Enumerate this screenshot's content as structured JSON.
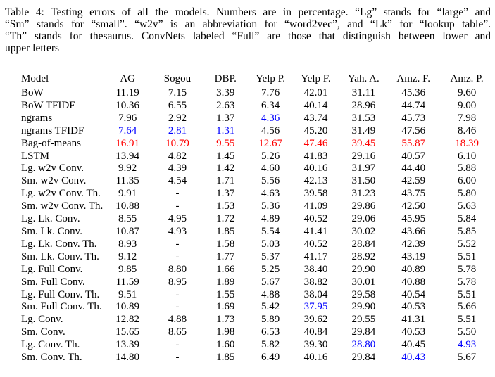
{
  "caption": {
    "lines": [
      "Table 4: Testing errors of all the models. Numbers are in percentage. “Lg” stands for “large” and",
      "“Sm” stands for “small”. “w2v” is an abbreviation for “word2vec”, and “Lk” for “lookup table”.",
      "“Th” stands for thesaurus. ConvNets labeled “Full” are those that distinguish between lower and",
      "upper letters"
    ]
  },
  "colors": {
    "text": "#000000",
    "background": "#ffffff",
    "highlight_best": "#0000ff",
    "highlight_worst": "#ff0000"
  },
  "table": {
    "headers": [
      "Model",
      "AG",
      "Sogou",
      "DBP.",
      "Yelp P.",
      "Yelp F.",
      "Yah. A.",
      "Amz. F.",
      "Amz. P."
    ],
    "rows": [
      {
        "model": "BoW",
        "values": [
          "11.19",
          "7.15",
          "3.39",
          "7.76",
          "42.01",
          "31.11",
          "45.36",
          "9.60"
        ],
        "colors": [
          "",
          "",
          "",
          "",
          "",
          "",
          "",
          ""
        ]
      },
      {
        "model": "BoW TFIDF",
        "values": [
          "10.36",
          "6.55",
          "2.63",
          "6.34",
          "40.14",
          "28.96",
          "44.74",
          "9.00"
        ],
        "colors": [
          "",
          "",
          "",
          "",
          "",
          "",
          "",
          ""
        ]
      },
      {
        "model": "ngrams",
        "values": [
          "7.96",
          "2.92",
          "1.37",
          "4.36",
          "43.74",
          "31.53",
          "45.73",
          "7.98"
        ],
        "colors": [
          "",
          "",
          "",
          "blue",
          "",
          "",
          "",
          ""
        ]
      },
      {
        "model": "ngrams TFIDF",
        "values": [
          "7.64",
          "2.81",
          "1.31",
          "4.56",
          "45.20",
          "31.49",
          "47.56",
          "8.46"
        ],
        "colors": [
          "blue",
          "blue",
          "blue",
          "",
          "",
          "",
          "",
          ""
        ]
      },
      {
        "model": "Bag-of-means",
        "values": [
          "16.91",
          "10.79",
          "9.55",
          "12.67",
          "47.46",
          "39.45",
          "55.87",
          "18.39"
        ],
        "colors": [
          "red",
          "red",
          "red",
          "red",
          "red",
          "red",
          "red",
          "red"
        ]
      },
      {
        "model": "LSTM",
        "values": [
          "13.94",
          "4.82",
          "1.45",
          "5.26",
          "41.83",
          "29.16",
          "40.57",
          "6.10"
        ],
        "colors": [
          "",
          "",
          "",
          "",
          "",
          "",
          "",
          ""
        ]
      },
      {
        "model": "Lg. w2v Conv.",
        "values": [
          "9.92",
          "4.39",
          "1.42",
          "4.60",
          "40.16",
          "31.97",
          "44.40",
          "5.88"
        ],
        "colors": [
          "",
          "",
          "",
          "",
          "",
          "",
          "",
          ""
        ]
      },
      {
        "model": "Sm. w2v Conv.",
        "values": [
          "11.35",
          "4.54",
          "1.71",
          "5.56",
          "42.13",
          "31.50",
          "42.59",
          "6.00"
        ],
        "colors": [
          "",
          "",
          "",
          "",
          "",
          "",
          "",
          ""
        ]
      },
      {
        "model": "Lg. w2v Conv. Th.",
        "values": [
          "9.91",
          "-",
          "1.37",
          "4.63",
          "39.58",
          "31.23",
          "43.75",
          "5.80"
        ],
        "colors": [
          "",
          "",
          "",
          "",
          "",
          "",
          "",
          ""
        ]
      },
      {
        "model": "Sm. w2v Conv. Th.",
        "values": [
          "10.88",
          "-",
          "1.53",
          "5.36",
          "41.09",
          "29.86",
          "42.50",
          "5.63"
        ],
        "colors": [
          "",
          "",
          "",
          "",
          "",
          "",
          "",
          ""
        ]
      },
      {
        "model": "Lg. Lk. Conv.",
        "values": [
          "8.55",
          "4.95",
          "1.72",
          "4.89",
          "40.52",
          "29.06",
          "45.95",
          "5.84"
        ],
        "colors": [
          "",
          "",
          "",
          "",
          "",
          "",
          "",
          ""
        ]
      },
      {
        "model": "Sm. Lk. Conv.",
        "values": [
          "10.87",
          "4.93",
          "1.85",
          "5.54",
          "41.41",
          "30.02",
          "43.66",
          "5.85"
        ],
        "colors": [
          "",
          "",
          "",
          "",
          "",
          "",
          "",
          ""
        ]
      },
      {
        "model": "Lg. Lk. Conv. Th.",
        "values": [
          "8.93",
          "-",
          "1.58",
          "5.03",
          "40.52",
          "28.84",
          "42.39",
          "5.52"
        ],
        "colors": [
          "",
          "",
          "",
          "",
          "",
          "",
          "",
          ""
        ]
      },
      {
        "model": "Sm. Lk. Conv. Th.",
        "values": [
          "9.12",
          "-",
          "1.77",
          "5.37",
          "41.17",
          "28.92",
          "43.19",
          "5.51"
        ],
        "colors": [
          "",
          "",
          "",
          "",
          "",
          "",
          "",
          ""
        ]
      },
      {
        "model": "Lg. Full Conv.",
        "values": [
          "9.85",
          "8.80",
          "1.66",
          "5.25",
          "38.40",
          "29.90",
          "40.89",
          "5.78"
        ],
        "colors": [
          "",
          "",
          "",
          "",
          "",
          "",
          "",
          ""
        ]
      },
      {
        "model": "Sm. Full Conv.",
        "values": [
          "11.59",
          "8.95",
          "1.89",
          "5.67",
          "38.82",
          "30.01",
          "40.88",
          "5.78"
        ],
        "colors": [
          "",
          "",
          "",
          "",
          "",
          "",
          "",
          ""
        ]
      },
      {
        "model": "Lg. Full Conv. Th.",
        "values": [
          "9.51",
          "-",
          "1.55",
          "4.88",
          "38.04",
          "29.58",
          "40.54",
          "5.51"
        ],
        "colors": [
          "",
          "",
          "",
          "",
          "",
          "",
          "",
          ""
        ]
      },
      {
        "model": "Sm. Full Conv. Th.",
        "values": [
          "10.89",
          "-",
          "1.69",
          "5.42",
          "37.95",
          "29.90",
          "40.53",
          "5.66"
        ],
        "colors": [
          "",
          "",
          "",
          "",
          "blue",
          "",
          "",
          ""
        ]
      },
      {
        "model": "Lg. Conv.",
        "values": [
          "12.82",
          "4.88",
          "1.73",
          "5.89",
          "39.62",
          "29.55",
          "41.31",
          "5.51"
        ],
        "colors": [
          "",
          "",
          "",
          "",
          "",
          "",
          "",
          ""
        ]
      },
      {
        "model": "Sm. Conv.",
        "values": [
          "15.65",
          "8.65",
          "1.98",
          "6.53",
          "40.84",
          "29.84",
          "40.53",
          "5.50"
        ],
        "colors": [
          "",
          "",
          "",
          "",
          "",
          "",
          "",
          ""
        ]
      },
      {
        "model": "Lg. Conv. Th.",
        "values": [
          "13.39",
          "-",
          "1.60",
          "5.82",
          "39.30",
          "28.80",
          "40.45",
          "4.93"
        ],
        "colors": [
          "",
          "",
          "",
          "",
          "",
          "blue",
          "",
          "blue"
        ]
      },
      {
        "model": "Sm. Conv. Th.",
        "values": [
          "14.80",
          "-",
          "1.85",
          "6.49",
          "40.16",
          "29.84",
          "40.43",
          "5.67"
        ],
        "colors": [
          "",
          "",
          "",
          "",
          "",
          "",
          "blue",
          ""
        ]
      }
    ]
  }
}
